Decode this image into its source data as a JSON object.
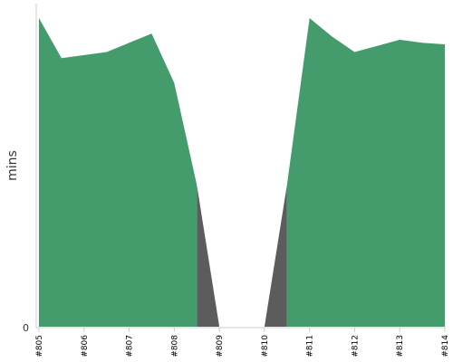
{
  "chart_data": {
    "type": "area",
    "ylabel": "mins",
    "y_tick_labels": [
      "0"
    ],
    "categories": [
      "#805",
      "#806",
      "#807",
      "#808",
      "#809",
      "#810",
      "#811",
      "#812",
      "#813",
      "#814"
    ],
    "x": [
      0,
      0.5,
      1,
      1.5,
      2,
      2.5,
      3,
      3.5,
      4,
      4.5,
      5,
      5.5,
      6,
      6.5,
      7,
      7.5,
      8,
      8.5,
      9
    ],
    "series": [
      {
        "status": "failed",
        "color": "#5c5c5c",
        "values": [
          null,
          null,
          null,
          null,
          null,
          null,
          null,
          46,
          0,
          0,
          0,
          46,
          null,
          null,
          null,
          null,
          null,
          null,
          null
        ]
      },
      {
        "status": "success",
        "color": "#449c6d",
        "values": [
          100,
          87,
          88,
          89,
          92,
          95,
          79,
          46,
          null,
          null,
          null,
          46,
          100,
          94,
          89,
          91,
          93,
          92,
          91.5
        ]
      }
    ],
    "ylim": [
      0,
      100
    ],
    "grid": false,
    "legend": "none"
  }
}
